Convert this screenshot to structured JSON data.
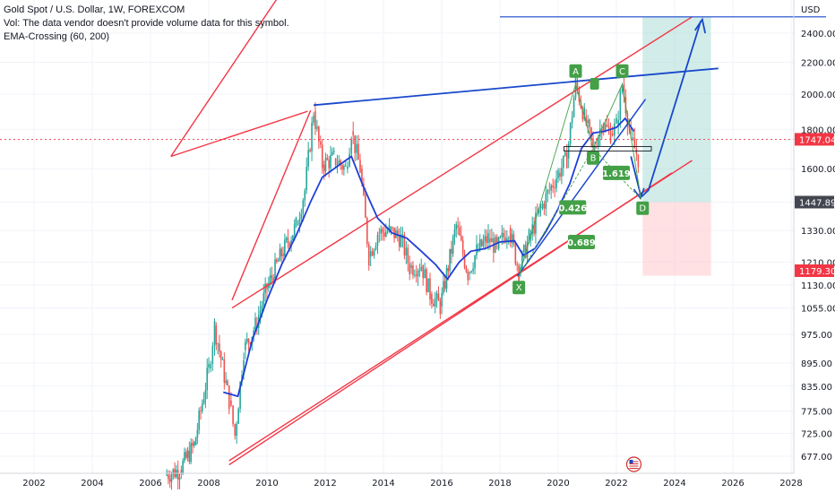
{
  "legend": {
    "title": "Gold Spot / U.S. Dollar, 1W, FOREXCOM",
    "volume_note": "Vol: The data vendor doesn't provide volume data for this symbol.",
    "indicator": "EMA-Crossing (60, 200)"
  },
  "axis": {
    "currency": "USD",
    "y_ticks": [
      "2400.00",
      "2200.00",
      "2000.00",
      "1800.00",
      "1600.00",
      "1447.89",
      "1330.00",
      "1210.00",
      "1130.00",
      "1055.00",
      "975.00",
      "895.00",
      "835.00",
      "775.00",
      "725.00",
      "677.00"
    ],
    "x_ticks": [
      "2002",
      "2004",
      "2006",
      "2008",
      "2010",
      "2012",
      "2014",
      "2016",
      "2018",
      "2020",
      "2022",
      "2024",
      "2026",
      "2028"
    ]
  },
  "price_badges": {
    "current": "1747.04",
    "target": "1447.89",
    "stop": "1179.30"
  },
  "colors": {
    "channel": "#f23645",
    "trend_blue": "#1848cc",
    "ema": "#1f3fd6",
    "candle_up": "#26a69a",
    "candle_down": "#ef5350",
    "wave_green": "#43a047",
    "profit_zone": "#b2dfdb",
    "loss_zone": "#ffcdd2",
    "current_badge": "#f23645",
    "target_badge": "#434651"
  },
  "chart_data": {
    "type": "line",
    "symbol": "Gold Spot / U.S. Dollar",
    "interval": "1W",
    "scale": "log",
    "ylim": [
      650,
      2520
    ],
    "xlim": [
      2001.0,
      2029.2
    ],
    "series": [
      {
        "name": "",
        "x": [
          2006.5,
          2007.0,
          2007.5,
          2008.0,
          2008.2,
          2008.7,
          2008.9,
          2009.2,
          2009.6,
          2010.0,
          2010.5,
          2011.0,
          2011.3,
          2011.6,
          2011.9,
          2012.3,
          2012.7,
          2012.9,
          2013.2,
          2013.5,
          2013.8,
          2014.2,
          2014.6,
          2014.9,
          2015.3,
          2015.6,
          2015.95,
          2016.5,
          2016.9,
          2017.2,
          2017.6,
          2017.9,
          2018.3,
          2018.65,
          2019.0,
          2019.4,
          2019.7,
          2020.0,
          2020.3,
          2020.6,
          2020.9,
          2021.2,
          2021.5,
          2021.8,
          2022.0,
          2022.2,
          2022.5,
          2022.75
        ],
        "values": [
          640,
          650,
          700,
          880,
          1000,
          800,
          720,
          930,
          1000,
          1120,
          1240,
          1350,
          1500,
          1900,
          1620,
          1650,
          1600,
          1790,
          1600,
          1230,
          1320,
          1330,
          1300,
          1190,
          1200,
          1100,
          1060,
          1350,
          1170,
          1250,
          1300,
          1260,
          1340,
          1180,
          1300,
          1420,
          1500,
          1580,
          1650,
          2070,
          1870,
          1700,
          1830,
          1780,
          1820,
          2060,
          1750,
          1650
        ]
      },
      {
        "name": "EMA 60",
        "x": [
          2008.5,
          2009.0,
          2009.5,
          2010.0,
          2010.5,
          2011.0,
          2011.5,
          2011.9,
          2012.5,
          2012.9,
          2013.3,
          2013.8,
          2014.3,
          2014.8,
          2015.3,
          2015.8,
          2016.2,
          2016.6,
          2017.0,
          2017.5,
          2018.0,
          2018.5,
          2018.8,
          2019.2,
          2019.6,
          2020.0,
          2020.4,
          2020.8,
          2021.2,
          2021.6,
          2022.0,
          2022.3,
          2022.6
        ],
        "values": [
          820,
          810,
          960,
          1080,
          1200,
          1310,
          1450,
          1560,
          1620,
          1660,
          1520,
          1380,
          1320,
          1300,
          1250,
          1200,
          1150,
          1210,
          1250,
          1260,
          1285,
          1290,
          1235,
          1260,
          1330,
          1420,
          1530,
          1700,
          1780,
          1790,
          1810,
          1860,
          1790
        ]
      }
    ],
    "wave_labels": [
      {
        "label": "X",
        "x": 2018.65,
        "y": 1120
      },
      {
        "label": "A",
        "x": 2020.6,
        "y": 2140
      },
      {
        "label": "B",
        "x": 2021.2,
        "y": 1650
      },
      {
        "label": "C",
        "x": 2022.2,
        "y": 2140
      },
      {
        "label": "D",
        "x": 2022.9,
        "y": 1420
      }
    ],
    "ratios": [
      {
        "label": "0.426",
        "x": 2020.5,
        "y": 1425
      },
      {
        "label": "0.689",
        "x": 2020.8,
        "y": 1285
      },
      {
        "label": "1.619",
        "x": 2022.0,
        "y": 1580
      }
    ],
    "levels": {
      "current": 1747.04,
      "target": 1447.89,
      "stop": 1179.3
    }
  }
}
